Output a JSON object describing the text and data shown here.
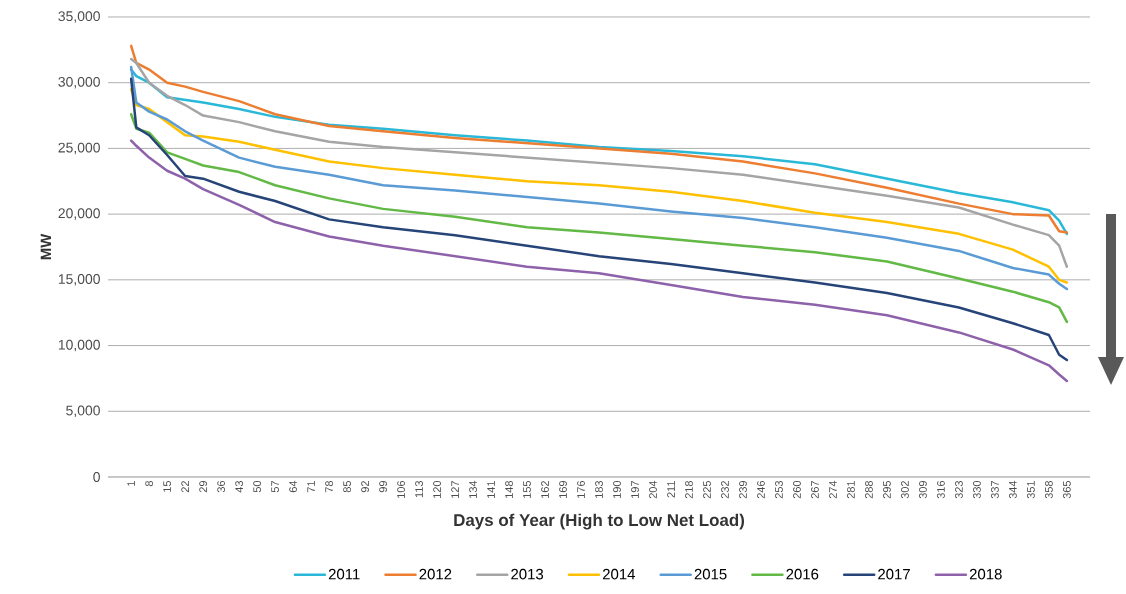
{
  "chart_data": {
    "type": "line",
    "xlabel": "Days of Year (High to Low Net Load)",
    "ylabel": "MW",
    "x": [
      1,
      3,
      8,
      15,
      22,
      29,
      43,
      57,
      78,
      99,
      127,
      155,
      183,
      211,
      239,
      267,
      295,
      323,
      344,
      358,
      362,
      365
    ],
    "xlim": [
      -8,
      374
    ],
    "xticks": [
      1,
      8,
      15,
      22,
      29,
      36,
      43,
      50,
      57,
      64,
      71,
      78,
      85,
      92,
      99,
      106,
      113,
      120,
      127,
      134,
      141,
      148,
      155,
      162,
      169,
      176,
      183,
      190,
      197,
      204,
      211,
      218,
      225,
      232,
      239,
      246,
      253,
      260,
      267,
      274,
      281,
      288,
      295,
      302,
      309,
      316,
      323,
      330,
      337,
      344,
      351,
      358,
      365
    ],
    "ylim": [
      0,
      35000
    ],
    "yticks": [
      0,
      {
        "value": 5000,
        "label": "5,000"
      },
      {
        "value": 10000,
        "label": "10,000"
      },
      {
        "value": 15000,
        "label": "15,000"
      },
      {
        "value": 20000,
        "label": "20,000"
      },
      {
        "value": 25000,
        "label": "25,000"
      },
      {
        "value": 30000,
        "label": "30,000"
      },
      {
        "value": 35000,
        "label": "35,000"
      }
    ],
    "grid": "y",
    "legend": "bottom",
    "marker": "none",
    "line_style": "solid",
    "series": [
      {
        "name": "2011",
        "color": "#29b8d8",
        "values": [
          31000,
          30500,
          30000,
          28900,
          28700,
          28500,
          28000,
          27400,
          26800,
          26500,
          26000,
          25600,
          25100,
          24800,
          24400,
          23800,
          22700,
          21600,
          20900,
          20300,
          19500,
          18500
        ]
      },
      {
        "name": "2012",
        "color": "#ed7d31",
        "values": [
          32800,
          31500,
          31000,
          30000,
          29700,
          29300,
          28600,
          27600,
          26700,
          26300,
          25800,
          25400,
          25000,
          24600,
          24000,
          23100,
          22000,
          20800,
          20000,
          19900,
          18700,
          18600
        ]
      },
      {
        "name": "2013",
        "color": "#a5a5a5",
        "values": [
          31800,
          31500,
          30000,
          29000,
          28300,
          27500,
          27000,
          26300,
          25500,
          25100,
          24700,
          24300,
          23900,
          23500,
          23000,
          22200,
          21400,
          20500,
          19200,
          18400,
          17600,
          16000
        ]
      },
      {
        "name": "2014",
        "color": "#ffc000",
        "values": [
          29500,
          28300,
          28000,
          27000,
          26000,
          25900,
          25500,
          24900,
          24000,
          23500,
          23000,
          22500,
          22200,
          21700,
          21000,
          20100,
          19400,
          18500,
          17300,
          16000,
          15000,
          14800
        ]
      },
      {
        "name": "2015",
        "color": "#5b9bd5",
        "values": [
          31200,
          28500,
          27800,
          27200,
          26300,
          25600,
          24300,
          23600,
          23000,
          22200,
          21800,
          21300,
          20800,
          20200,
          19700,
          19000,
          18200,
          17200,
          15900,
          15400,
          14700,
          14300
        ]
      },
      {
        "name": "2016",
        "color": "#62b946",
        "values": [
          27600,
          26500,
          26200,
          24700,
          24200,
          23700,
          23200,
          22200,
          21200,
          20400,
          19800,
          19000,
          18600,
          18100,
          17600,
          17100,
          16400,
          15100,
          14100,
          13300,
          12900,
          11800
        ]
      },
      {
        "name": "2017",
        "color": "#264478",
        "values": [
          30300,
          26600,
          26000,
          24500,
          22900,
          22700,
          21700,
          21000,
          19600,
          19000,
          18400,
          17600,
          16800,
          16200,
          15500,
          14800,
          14000,
          12900,
          11700,
          10800,
          9300,
          8900
        ]
      },
      {
        "name": "2018",
        "color": "#8e62aa",
        "values": [
          25600,
          25200,
          24300,
          23300,
          22700,
          21900,
          20700,
          19400,
          18300,
          17600,
          16800,
          16000,
          15500,
          14600,
          13700,
          13100,
          12300,
          11000,
          9700,
          8500,
          7800,
          7300
        ]
      }
    ]
  }
}
